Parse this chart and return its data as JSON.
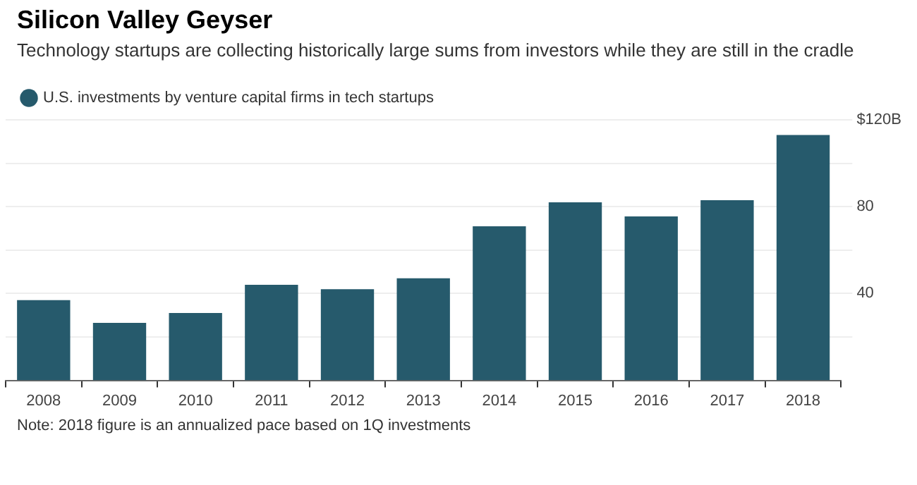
{
  "chart_data": {
    "type": "bar",
    "title": "Silicon Valley Geyser",
    "subtitle": "Technology startups are collecting historically large sums from investors while they are still in the cradle",
    "categories": [
      "2008",
      "2009",
      "2010",
      "2011",
      "2012",
      "2013",
      "2014",
      "2015",
      "2016",
      "2017",
      "2018"
    ],
    "series": [
      {
        "name": "U.S. investments by venture capital firms in tech startups",
        "color": "#265a6c",
        "values": [
          37,
          26.5,
          31,
          44,
          42,
          47,
          71,
          82,
          75.5,
          83,
          113
        ]
      }
    ],
    "ylim": [
      0,
      120
    ],
    "yticks": [
      {
        "value": 20,
        "label": null
      },
      {
        "value": 40,
        "label": "40"
      },
      {
        "value": 60,
        "label": null
      },
      {
        "value": 80,
        "label": "80"
      },
      {
        "value": 100,
        "label": null
      },
      {
        "value": 120,
        "label": "$120B"
      }
    ],
    "grid": "y",
    "legend": "top left",
    "annotations": [
      "Note: 2018 figure is an annualized pace based on 1Q investments"
    ]
  }
}
